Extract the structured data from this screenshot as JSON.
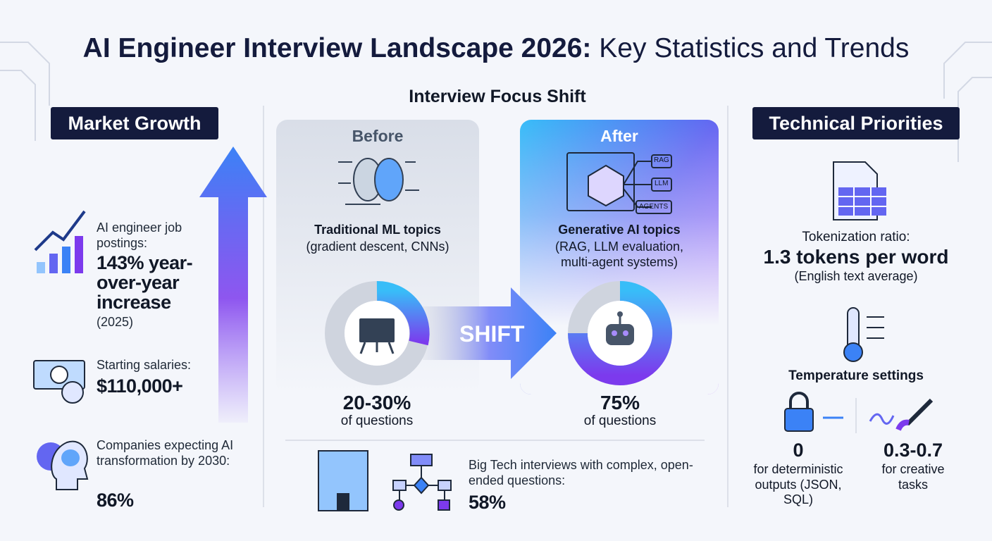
{
  "header": {
    "title_bold": "AI Engineer Interview Landscape 2026:",
    "title_rest": "Key Statistics and Trends"
  },
  "market_growth": {
    "heading": "Market Growth",
    "stats": [
      {
        "label": "AI engineer job postings:",
        "value": "143% year-over-year increase",
        "note": "(2025)"
      },
      {
        "label": "Starting salaries:",
        "value": "$110,000+"
      },
      {
        "label": "Companies expecting AI transformation by 2030:",
        "value": "86%"
      }
    ]
  },
  "focus_shift": {
    "heading": "Interview Focus Shift",
    "before": {
      "label": "Before",
      "topic": "Traditional ML topics",
      "detail": "(gradient descent, CNNs)",
      "share": "20-30%",
      "share_note": "of questions"
    },
    "arrow": "SHIFT",
    "after": {
      "label": "After",
      "tags": [
        "RAG",
        "LLM",
        "AGENTS"
      ],
      "topic": "Generative AI topics",
      "detail": "(RAG, LLM evaluation, multi-agent systems)",
      "share": "75%",
      "share_note": "of questions"
    },
    "big_tech": {
      "label": "Big Tech interviews with complex, open-ended questions:",
      "value": "58%"
    }
  },
  "technical_priorities": {
    "heading": "Technical Priorities",
    "tokenization": {
      "label": "Tokenization ratio:",
      "value": "1.3 tokens per word",
      "note": "(English text average)"
    },
    "temperature": {
      "heading": "Temperature settings",
      "settings": [
        {
          "value": "0",
          "label": "for deterministic outputs (JSON, SQL)"
        },
        {
          "value": "0.3-0.7",
          "label": "for creative tasks"
        }
      ]
    }
  }
}
